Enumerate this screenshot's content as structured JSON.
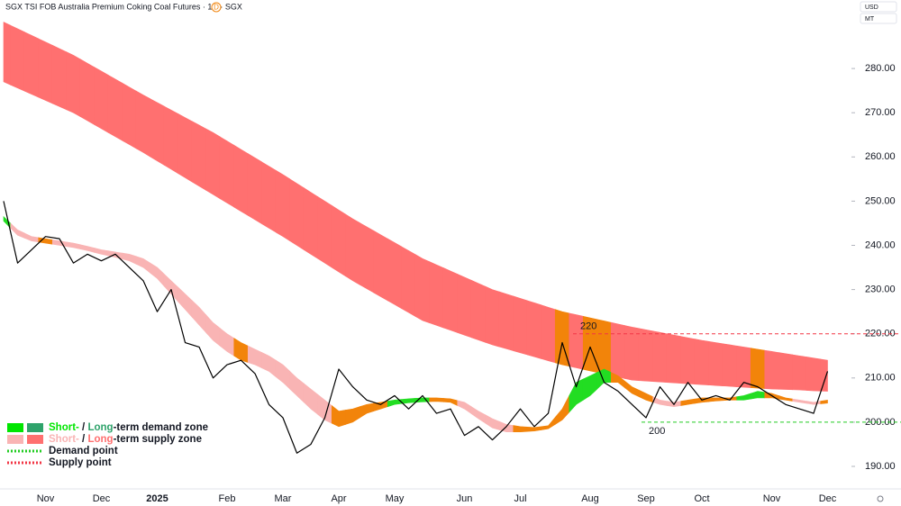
{
  "chart_data": {
    "type": "zone_line",
    "title": "SGX TSI FOB Australia Premium Coking Coal Futures · 1D · SGX",
    "badge": "D",
    "currency": "USD",
    "unit": "MT",
    "categories": [
      null,
      null,
      null,
      "Nov",
      null,
      null,
      null,
      "Dec",
      null,
      null,
      null,
      "2025",
      null,
      null,
      null,
      null,
      "Feb",
      null,
      null,
      null,
      "Mar",
      null,
      null,
      null,
      "Apr",
      null,
      null,
      null,
      "May",
      null,
      null,
      null,
      null,
      "Jun",
      null,
      null,
      null,
      "Jul",
      null,
      null,
      null,
      null,
      "Aug",
      null,
      null,
      null,
      "Sep",
      null,
      null,
      null,
      "Oct",
      null,
      null,
      null,
      null,
      "Nov",
      null,
      null,
      null,
      "Dec"
    ],
    "ylim": [
      184.5,
      295.5
    ],
    "yticks": [
      {
        "value": 190,
        "label": "190.00"
      },
      {
        "value": 200,
        "label": "200.00"
      },
      {
        "value": 210,
        "label": "210.00"
      },
      {
        "value": 220,
        "label": "220.00"
      },
      {
        "value": 230,
        "label": "230.00"
      },
      {
        "value": 240,
        "label": "240.00"
      },
      {
        "value": 250,
        "label": "250.00"
      },
      {
        "value": 260,
        "label": "260.00"
      },
      {
        "value": 270,
        "label": "270.00"
      },
      {
        "value": 280,
        "label": "280.00"
      }
    ],
    "price": {
      "color": "#000000",
      "values": [
        250,
        236,
        239,
        242,
        241.5,
        236,
        238,
        236.5,
        238,
        235,
        232,
        225,
        230,
        218,
        217,
        210,
        213,
        214,
        211,
        204,
        201,
        193,
        195,
        201,
        212,
        208,
        205,
        204,
        206,
        203,
        206,
        202,
        203,
        197,
        199,
        196,
        199,
        203,
        199,
        202,
        218,
        208,
        217,
        209,
        207,
        204,
        201,
        208,
        204,
        209,
        205,
        206,
        205,
        209,
        208,
        206,
        204,
        203,
        202,
        211.5
      ]
    },
    "long_term_zone": {
      "upper": [
        290.5,
        289,
        287.5,
        286,
        284.5,
        283,
        281.2,
        279.4,
        277.6,
        275.8,
        274,
        272.3,
        270.6,
        268.9,
        267.2,
        265.5,
        263.6,
        261.7,
        259.8,
        257.9,
        256,
        254,
        252,
        250,
        248,
        246,
        244.2,
        242.4,
        240.6,
        238.8,
        237,
        235.6,
        234.2,
        232.8,
        231.4,
        230,
        229,
        228,
        227,
        226,
        225,
        224.3,
        223.6,
        222.9,
        222.2,
        221.5,
        220.9,
        220.3,
        219.7,
        219.1,
        218.5,
        218,
        217.5,
        217,
        216.5,
        216,
        215.5,
        215,
        214.5,
        214
      ],
      "lower": [
        277,
        275.6,
        274.2,
        272.8,
        271.4,
        270,
        268.2,
        266.4,
        264.6,
        262.8,
        261,
        259.1,
        257.2,
        255.3,
        253.4,
        251.5,
        249.6,
        247.7,
        245.8,
        243.9,
        242,
        240,
        238,
        236,
        234,
        232,
        230.2,
        228.4,
        226.6,
        224.8,
        223,
        221.9,
        220.8,
        219.7,
        218.6,
        217.5,
        216.6,
        215.7,
        214.8,
        213.9,
        213,
        212.3,
        211.6,
        210.9,
        210.2,
        209.5,
        209.3,
        209.1,
        208.9,
        208.7,
        208.5,
        208.3,
        208.1,
        207.9,
        207.7,
        207.5,
        207.4,
        207.3,
        207.1,
        207
      ],
      "colors": [
        "#ff7070",
        "#ff7070",
        "#ff7070",
        "#ff7070",
        "#ff7070",
        "#ff7070",
        "#ff7070",
        "#ff7070",
        "#ff7070",
        "#ff7070",
        "#ff7070",
        "#ff7070",
        "#ff7070",
        "#ff7070",
        "#ff7070",
        "#ff7070",
        "#ff7070",
        "#ff7070",
        "#ff7070",
        "#ff7070",
        "#ff7070",
        "#ff7070",
        "#ff7070",
        "#ff7070",
        "#ff7070",
        "#ff7070",
        "#ff7070",
        "#ff7070",
        "#ff7070",
        "#ff7070",
        "#ff7070",
        "#ff7070",
        "#ff7070",
        "#ff7070",
        "#ff7070",
        "#ff7070",
        "#ff7070",
        "#ff7070",
        "#ff7070",
        "#ff7070",
        "#f2840a",
        "#ff7070",
        "#f2840a",
        "#f2840a",
        "#ff7070",
        "#ff7070",
        "#ff7070",
        "#ff7070",
        "#ff7070",
        "#ff7070",
        "#ff7070",
        "#ff7070",
        "#ff7070",
        "#ff7070",
        "#f2840a",
        "#ff7070",
        "#ff7070",
        "#ff7070",
        "#ff7070",
        "#ff7070"
      ]
    },
    "short_term_zone": {
      "upper": [
        246.5,
        243.5,
        242,
        241.5,
        241,
        240.5,
        239.8,
        239,
        238.5,
        238,
        237,
        235,
        232,
        229,
        226,
        222.5,
        220,
        218,
        216.5,
        215,
        213,
        210,
        207.5,
        205,
        202.5,
        203,
        204,
        204.5,
        205,
        205.3,
        205.5,
        205.5,
        205.3,
        204.5,
        202.5,
        200.8,
        199.5,
        199,
        198.8,
        199.2,
        203,
        209,
        210.5,
        212,
        210.5,
        208,
        206.5,
        205,
        204.5,
        205,
        205.5,
        205.5,
        205.5,
        206,
        207,
        206.5,
        205.5,
        205,
        204.5,
        205
      ],
      "lower": [
        245.5,
        242.3,
        241,
        240.5,
        240,
        239.5,
        238.8,
        238,
        237.3,
        236.5,
        235,
        232.5,
        229,
        225.5,
        222,
        218.5,
        216,
        214,
        213,
        211.5,
        209,
        206,
        203,
        200.5,
        199,
        200,
        202,
        203,
        204,
        204.4,
        204.6,
        204.7,
        204.5,
        203,
        200.8,
        198.7,
        197.8,
        197.8,
        198,
        198.5,
        200.5,
        204,
        206,
        209,
        209,
        206.5,
        205,
        204,
        203.5,
        204,
        204.5,
        204.8,
        205,
        205,
        205.5,
        205.5,
        205,
        204.5,
        204,
        204.3
      ],
      "colors": [
        "#22dd22",
        "#f9b4b4",
        "#f9b4b4",
        "#f2840a",
        "#f9b4b4",
        "#f9b4b4",
        "#f9b4b4",
        "#f9b4b4",
        "#f9b4b4",
        "#f9b4b4",
        "#f9b4b4",
        "#f9b4b4",
        "#f9b4b4",
        "#f9b4b4",
        "#f9b4b4",
        "#f9b4b4",
        "#f9b4b4",
        "#f2840a",
        "#f9b4b4",
        "#f9b4b4",
        "#f9b4b4",
        "#f9b4b4",
        "#f9b4b4",
        "#f9b4b4",
        "#f2840a",
        "#f2840a",
        "#f2840a",
        "#f2840a",
        "#22dd22",
        "#22dd22",
        "#22dd22",
        "#f2840a",
        "#f2840a",
        "#f9b4b4",
        "#f9b4b4",
        "#f9b4b4",
        "#f9b4b4",
        "#f2840a",
        "#f2840a",
        "#f2840a",
        "#f2840a",
        "#22dd22",
        "#22dd22",
        "#22dd22",
        "#f2840a",
        "#f2840a",
        "#f2840a",
        "#f9b4b4",
        "#f9b4b4",
        "#f2840a",
        "#f2840a",
        "#f2840a",
        "#f2840a",
        "#22dd22",
        "#22dd22",
        "#f2840a",
        "#f2840a",
        "#f9b4b4",
        "#f9b4b4",
        "#f2840a"
      ]
    },
    "supply_point": {
      "value": 220,
      "color": "#f23645"
    },
    "demand_point": {
      "value": 200,
      "color": "#22cc22"
    },
    "legend": [
      {
        "short": "Short-",
        "sep": " / ",
        "long": "Long",
        "rest": "-term demand zone",
        "colors": [
          "#00e600",
          "#2fa36b"
        ]
      },
      {
        "short": "Short-",
        "sep": " / ",
        "long": "Long",
        "rest": "-term supply zone",
        "colors": [
          "#f9b4b4",
          "#ff7070"
        ]
      },
      {
        "text": "Demand point",
        "color": "#22cc22"
      },
      {
        "text": "Supply point",
        "color": "#f23645"
      }
    ]
  }
}
